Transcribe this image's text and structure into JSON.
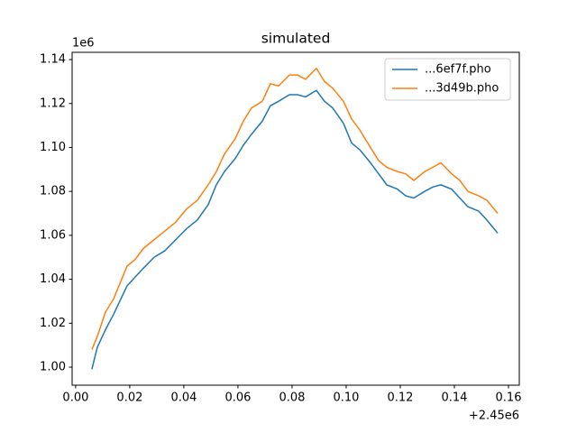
{
  "chart_data": {
    "type": "line",
    "title": "simulated",
    "x_offset_label": "+2.45e6",
    "y_offset_label": "1e6",
    "x": [
      0.006,
      0.008,
      0.011,
      0.014,
      0.019,
      0.022,
      0.025,
      0.029,
      0.033,
      0.037,
      0.041,
      0.045,
      0.049,
      0.052,
      0.055,
      0.059,
      0.062,
      0.065,
      0.069,
      0.072,
      0.075,
      0.079,
      0.082,
      0.085,
      0.089,
      0.092,
      0.095,
      0.099,
      0.102,
      0.105,
      0.109,
      0.112,
      0.115,
      0.119,
      0.122,
      0.125,
      0.129,
      0.132,
      0.135,
      0.139,
      0.142,
      0.145,
      0.149,
      0.152,
      0.156
    ],
    "series": [
      {
        "name": "...6ef7f.pho",
        "color": "#1f77b4",
        "values": [
          0.999,
          1.009,
          1.017,
          1.024,
          1.037,
          1.041,
          1.045,
          1.05,
          1.053,
          1.058,
          1.063,
          1.067,
          1.074,
          1.083,
          1.089,
          1.095,
          1.101,
          1.106,
          1.112,
          1.119,
          1.121,
          1.124,
          1.124,
          1.123,
          1.126,
          1.121,
          1.118,
          1.111,
          1.102,
          1.099,
          1.093,
          1.088,
          1.083,
          1.081,
          1.078,
          1.077,
          1.08,
          1.082,
          1.083,
          1.081,
          1.077,
          1.073,
          1.071,
          1.067,
          1.061
        ]
      },
      {
        "name": "...3d49b.pho",
        "color": "#ff7f0e",
        "values": [
          1.008,
          1.014,
          1.025,
          1.031,
          1.046,
          1.049,
          1.054,
          1.058,
          1.062,
          1.066,
          1.072,
          1.076,
          1.083,
          1.089,
          1.097,
          1.104,
          1.112,
          1.118,
          1.121,
          1.129,
          1.128,
          1.133,
          1.133,
          1.131,
          1.136,
          1.13,
          1.127,
          1.121,
          1.113,
          1.108,
          1.1,
          1.094,
          1.091,
          1.089,
          1.088,
          1.085,
          1.089,
          1.091,
          1.093,
          1.088,
          1.085,
          1.08,
          1.078,
          1.076,
          1.07
        ]
      }
    ],
    "xlim": [
      -0.0013,
      0.164
    ],
    "xticks": [
      {
        "value": 0.0,
        "label": "0.00"
      },
      {
        "value": 0.02,
        "label": "0.02"
      },
      {
        "value": 0.04,
        "label": "0.04"
      },
      {
        "value": 0.06,
        "label": "0.06"
      },
      {
        "value": 0.08,
        "label": "0.08"
      },
      {
        "value": 0.1,
        "label": "0.10"
      },
      {
        "value": 0.12,
        "label": "0.12"
      },
      {
        "value": 0.14,
        "label": "0.14"
      },
      {
        "value": 0.16,
        "label": "0.16"
      }
    ],
    "ylim": [
      0.9918,
      1.1433
    ],
    "yticks": [
      {
        "value": 1.0,
        "label": "1.00"
      },
      {
        "value": 1.02,
        "label": "1.02"
      },
      {
        "value": 1.04,
        "label": "1.04"
      },
      {
        "value": 1.06,
        "label": "1.06"
      },
      {
        "value": 1.08,
        "label": "1.08"
      },
      {
        "value": 1.1,
        "label": "1.10"
      },
      {
        "value": 1.12,
        "label": "1.12"
      },
      {
        "value": 1.14,
        "label": "1.14"
      }
    ],
    "grid": false,
    "legend": "upper right"
  }
}
